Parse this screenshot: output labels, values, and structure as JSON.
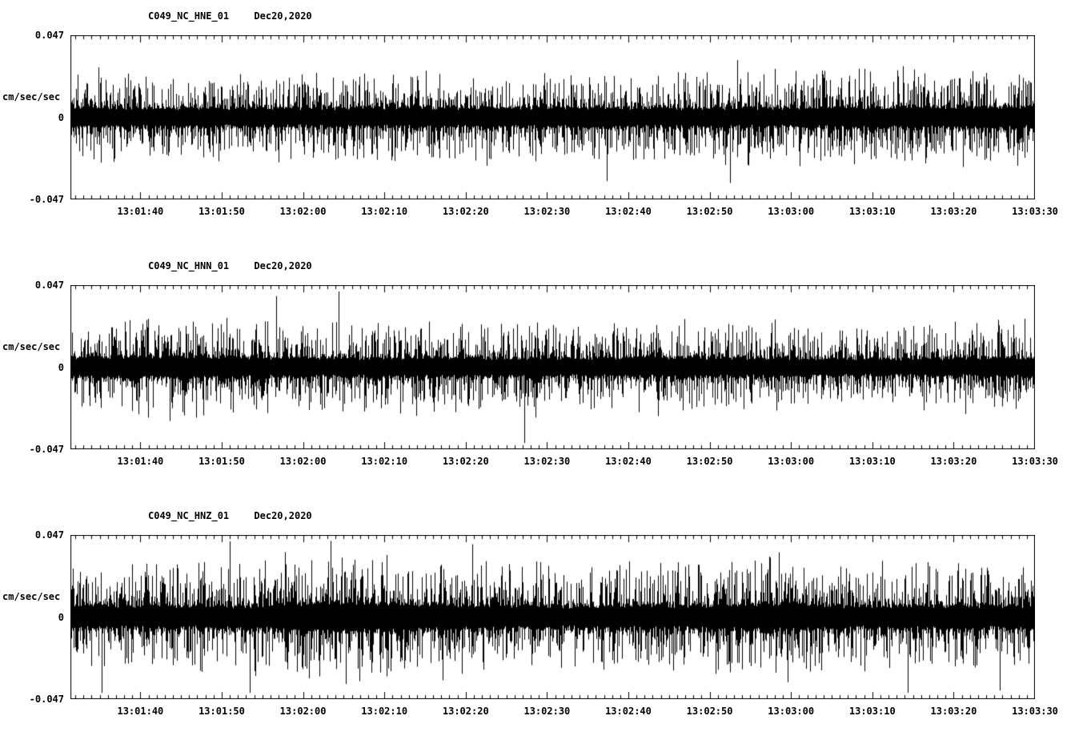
{
  "page": {
    "background": "#ffffff",
    "foreground": "#000000"
  },
  "chart_data": [
    {
      "type": "line",
      "title": "C049_NC_HNE_01",
      "date_label": "Dec20,2020",
      "ylabel": "cm/sec/sec",
      "ylim": [
        -0.047,
        0.047
      ],
      "ytick_labels": {
        "max": "0.047",
        "zero": "0",
        "min": "-0.047"
      },
      "xtick_labels": [
        "13:01:40",
        "13:01:50",
        "13:02:00",
        "13:02:10",
        "13:02:20",
        "13:02:30",
        "13:02:40",
        "13:02:50",
        "13:03:00",
        "13:03:10",
        "13:03:20",
        "13:03:30"
      ],
      "x_axis": {
        "left_offset_seconds": 8.6,
        "label_interval_seconds": 10,
        "minor_tick_seconds": 1
      },
      "grid": false,
      "legend": false,
      "waveform": {
        "kind": "broadband-noise",
        "seed": 11,
        "envelope": [
          0.52,
          0.55,
          0.5,
          0.53,
          0.55,
          0.52,
          0.55,
          0.52,
          0.53,
          0.56,
          0.58,
          0.56
        ],
        "spike_rate": 0.01,
        "spike_scale": 1.7
      }
    },
    {
      "type": "line",
      "title": "C049_NC_HNN_01",
      "date_label": "Dec20,2020",
      "ylabel": "cm/sec/sec",
      "ylim": [
        -0.047,
        0.047
      ],
      "ytick_labels": {
        "max": "0.047",
        "zero": "0",
        "min": "-0.047"
      },
      "xtick_labels": [
        "13:01:40",
        "13:01:50",
        "13:02:00",
        "13:02:10",
        "13:02:20",
        "13:02:30",
        "13:02:40",
        "13:02:50",
        "13:03:00",
        "13:03:10",
        "13:03:20",
        "13:03:30"
      ],
      "x_axis": {
        "left_offset_seconds": 8.6,
        "label_interval_seconds": 10,
        "minor_tick_seconds": 1
      },
      "grid": false,
      "legend": false,
      "waveform": {
        "kind": "broadband-noise",
        "seed": 22,
        "envelope": [
          0.58,
          0.6,
          0.56,
          0.52,
          0.55,
          0.52,
          0.5,
          0.55,
          0.52,
          0.46,
          0.5,
          0.55
        ],
        "spike_rate": 0.008,
        "spike_scale": 2.2
      }
    },
    {
      "type": "line",
      "title": "C049_NC_HNZ_01",
      "date_label": "Dec20,2020",
      "ylabel": "cm/sec/sec",
      "ylim": [
        -0.047,
        0.047
      ],
      "ytick_labels": {
        "max": "0.047",
        "zero": "0",
        "min": "-0.047"
      },
      "xtick_labels": [
        "13:01:40",
        "13:01:50",
        "13:02:00",
        "13:02:10",
        "13:02:20",
        "13:02:30",
        "13:02:40",
        "13:02:50",
        "13:03:00",
        "13:03:10",
        "13:03:20",
        "13:03:30"
      ],
      "x_axis": {
        "left_offset_seconds": 8.6,
        "label_interval_seconds": 10,
        "minor_tick_seconds": 1
      },
      "grid": false,
      "legend": false,
      "waveform": {
        "kind": "broadband-noise",
        "seed": 33,
        "envelope": [
          0.6,
          0.62,
          0.64,
          0.85,
          0.72,
          0.62,
          0.6,
          0.66,
          0.78,
          0.62,
          0.64,
          0.62
        ],
        "spike_rate": 0.015,
        "spike_scale": 2.0
      }
    }
  ]
}
